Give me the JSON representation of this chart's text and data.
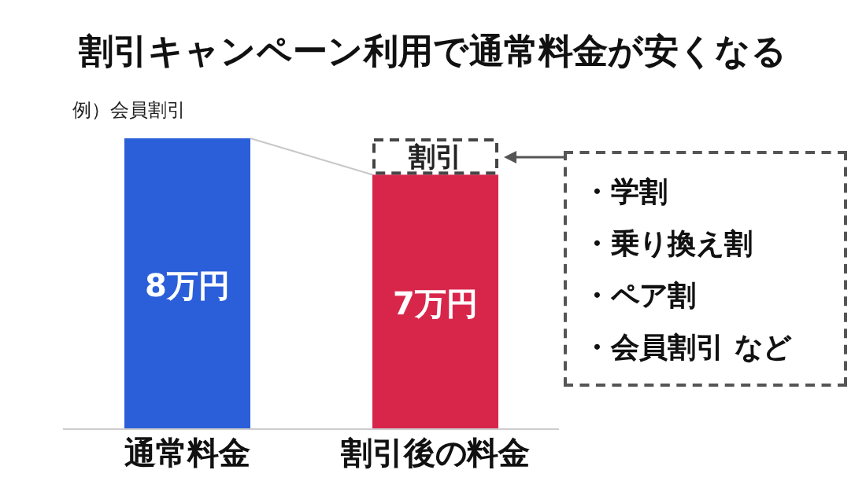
{
  "chart_data": {
    "type": "bar",
    "title": "割引キャンペーン利用で通常料金が安くなる",
    "subtitle": "例）会員割引",
    "categories": [
      "通常料金",
      "割引後の料金"
    ],
    "stacked": true,
    "series": [
      {
        "colors": [
          "#2b5fd9",
          "#d8264b"
        ],
        "values": [
          8,
          7
        ],
        "value_labels": [
          "8万円",
          "7万円"
        ]
      },
      {
        "name": "割引",
        "color": "#444444",
        "values": [
          null,
          1
        ]
      }
    ],
    "annotations": [
      "・学割",
      "・乗り換え割",
      "・ペア割",
      "・会員割引 など"
    ]
  }
}
